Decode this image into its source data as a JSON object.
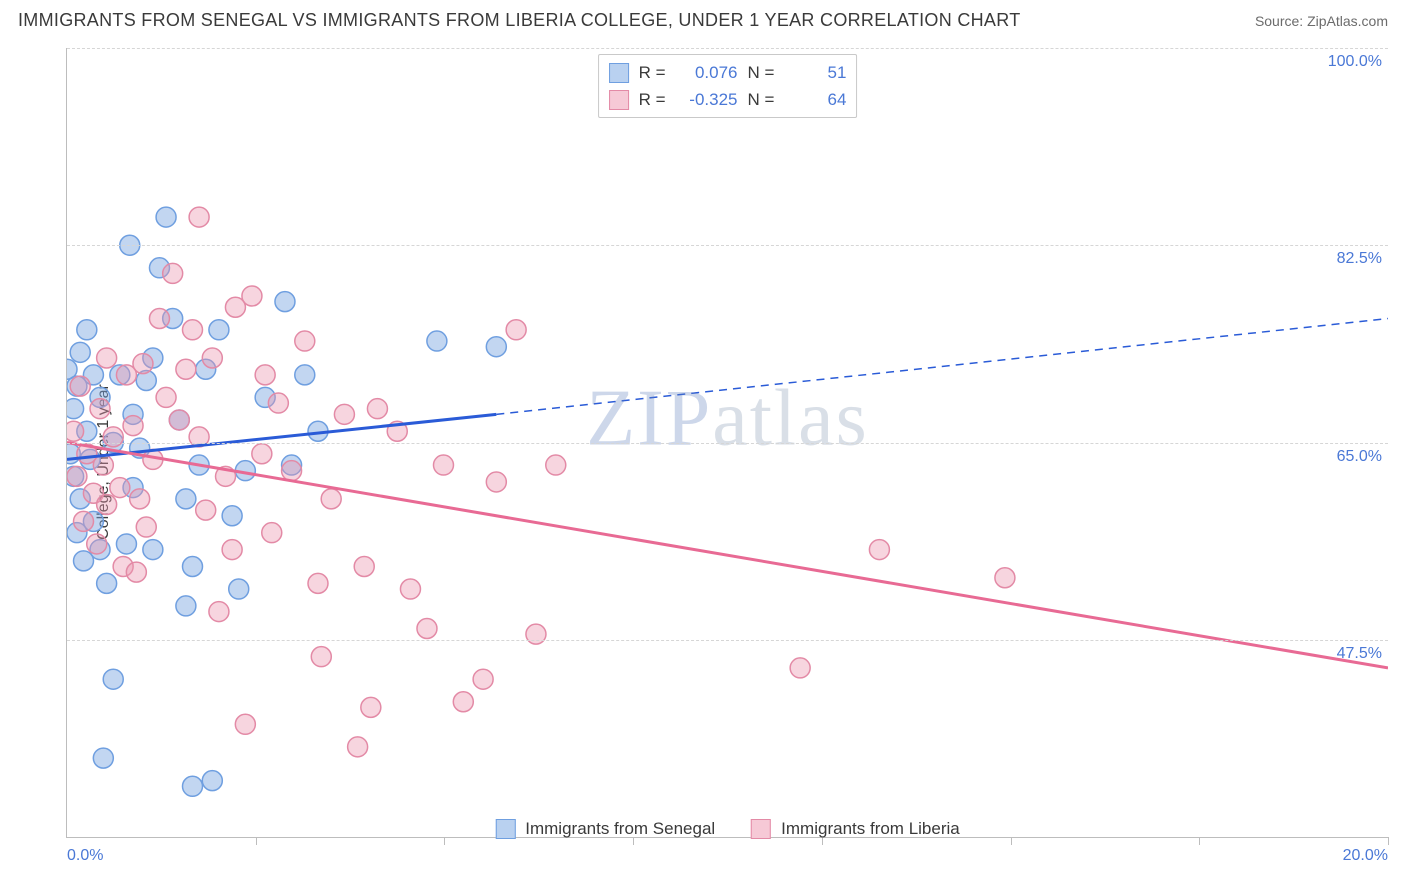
{
  "title": "IMMIGRANTS FROM SENEGAL VS IMMIGRANTS FROM LIBERIA COLLEGE, UNDER 1 YEAR CORRELATION CHART",
  "source": "Source: ZipAtlas.com",
  "yaxis_label": "College, Under 1 year",
  "watermark": "ZIPatlas",
  "chart": {
    "type": "scatter",
    "background_color": "#ffffff",
    "grid_color": "#d6d6d6",
    "axis_color": "#bdbdbd",
    "tick_label_color": "#4a78d6",
    "xlim": [
      0,
      20
    ],
    "ylim": [
      30,
      100
    ],
    "x_ticks": [
      0,
      2.86,
      5.71,
      8.57,
      11.43,
      14.29,
      17.14,
      20
    ],
    "x_labels": [
      {
        "x": 0,
        "text": "0.0%",
        "anchor": "start"
      },
      {
        "x": 20,
        "text": "20.0%",
        "anchor": "end"
      }
    ],
    "y_gridlines": [
      47.5,
      65.0,
      82.5,
      100.0
    ],
    "y_labels": [
      "47.5%",
      "65.0%",
      "82.5%",
      "100.0%"
    ],
    "series": [
      {
        "name": "Immigrants from Senegal",
        "color_fill": "rgba(120,165,225,0.45)",
        "color_stroke": "#6f9fe0",
        "swatch_fill": "#b9d1f0",
        "swatch_border": "#6f9fe0",
        "trend_color": "#2a5bd7",
        "trend_width": 3,
        "r": 0.076,
        "n": 51,
        "marker_radius": 10,
        "trend_solid": {
          "x1": 0,
          "y1": 63.5,
          "x2": 6.5,
          "y2": 67.5
        },
        "trend_dashed": {
          "x1": 6.5,
          "y1": 67.5,
          "x2": 20,
          "y2": 76.0
        },
        "points": [
          [
            0.0,
            71.5
          ],
          [
            0.05,
            64.0
          ],
          [
            0.1,
            68.0
          ],
          [
            0.1,
            62.0
          ],
          [
            0.15,
            57.0
          ],
          [
            0.15,
            70.0
          ],
          [
            0.2,
            73.0
          ],
          [
            0.2,
            60.0
          ],
          [
            0.25,
            54.5
          ],
          [
            0.3,
            66.0
          ],
          [
            0.35,
            63.5
          ],
          [
            0.4,
            71.0
          ],
          [
            0.4,
            58.0
          ],
          [
            0.5,
            55.5
          ],
          [
            0.5,
            69.0
          ],
          [
            0.6,
            52.5
          ],
          [
            0.7,
            44.0
          ],
          [
            0.7,
            65.0
          ],
          [
            0.8,
            71.0
          ],
          [
            0.9,
            56.0
          ],
          [
            0.95,
            82.5
          ],
          [
            1.0,
            67.5
          ],
          [
            1.0,
            61.0
          ],
          [
            1.1,
            64.5
          ],
          [
            1.2,
            70.5
          ],
          [
            1.3,
            55.5
          ],
          [
            1.3,
            72.5
          ],
          [
            1.4,
            80.5
          ],
          [
            1.5,
            85.0
          ],
          [
            1.6,
            76.0
          ],
          [
            1.7,
            67.0
          ],
          [
            1.8,
            50.5
          ],
          [
            1.8,
            60.0
          ],
          [
            1.9,
            54.0
          ],
          [
            2.0,
            63.0
          ],
          [
            2.1,
            71.5
          ],
          [
            2.2,
            35.0
          ],
          [
            2.3,
            75.0
          ],
          [
            2.5,
            58.5
          ],
          [
            2.6,
            52.0
          ],
          [
            2.7,
            62.5
          ],
          [
            3.0,
            69.0
          ],
          [
            3.3,
            77.5
          ],
          [
            3.4,
            63.0
          ],
          [
            3.6,
            71.0
          ],
          [
            3.8,
            66.0
          ],
          [
            0.3,
            75.0
          ],
          [
            5.6,
            74.0
          ],
          [
            6.5,
            73.5
          ],
          [
            1.9,
            34.5
          ],
          [
            0.55,
            37.0
          ]
        ]
      },
      {
        "name": "Immigrants from Liberia",
        "color_fill": "rgba(235,150,175,0.40)",
        "color_stroke": "#e38aa6",
        "swatch_fill": "#f6c9d6",
        "swatch_border": "#e38aa6",
        "trend_color": "#e86a94",
        "trend_width": 3,
        "r": -0.325,
        "n": 64,
        "marker_radius": 10,
        "trend_solid": {
          "x1": 0,
          "y1": 65.0,
          "x2": 20,
          "y2": 45.0
        },
        "trend_dashed": null,
        "points": [
          [
            0.1,
            66.0
          ],
          [
            0.15,
            62.0
          ],
          [
            0.2,
            70.0
          ],
          [
            0.25,
            58.0
          ],
          [
            0.3,
            64.0
          ],
          [
            0.4,
            60.5
          ],
          [
            0.45,
            56.0
          ],
          [
            0.5,
            68.0
          ],
          [
            0.55,
            63.0
          ],
          [
            0.6,
            59.5
          ],
          [
            0.7,
            65.5
          ],
          [
            0.8,
            61.0
          ],
          [
            0.85,
            54.0
          ],
          [
            0.9,
            71.0
          ],
          [
            1.0,
            66.5
          ],
          [
            1.1,
            60.0
          ],
          [
            1.15,
            72.0
          ],
          [
            1.2,
            57.5
          ],
          [
            1.3,
            63.5
          ],
          [
            1.4,
            76.0
          ],
          [
            1.5,
            69.0
          ],
          [
            1.6,
            80.0
          ],
          [
            1.7,
            67.0
          ],
          [
            1.8,
            71.5
          ],
          [
            1.9,
            75.0
          ],
          [
            2.0,
            85.0
          ],
          [
            2.0,
            65.5
          ],
          [
            2.1,
            59.0
          ],
          [
            2.2,
            72.5
          ],
          [
            2.3,
            50.0
          ],
          [
            2.4,
            62.0
          ],
          [
            2.5,
            55.5
          ],
          [
            2.7,
            40.0
          ],
          [
            2.8,
            78.0
          ],
          [
            2.95,
            64.0
          ],
          [
            3.0,
            71.0
          ],
          [
            3.1,
            57.0
          ],
          [
            3.2,
            68.5
          ],
          [
            3.4,
            62.5
          ],
          [
            3.6,
            74.0
          ],
          [
            3.8,
            52.5
          ],
          [
            4.0,
            60.0
          ],
          [
            4.2,
            67.5
          ],
          [
            4.4,
            38.0
          ],
          [
            4.5,
            54.0
          ],
          [
            4.7,
            68.0
          ],
          [
            5.0,
            66.0
          ],
          [
            5.2,
            52.0
          ],
          [
            5.45,
            48.5
          ],
          [
            5.7,
            63.0
          ],
          [
            6.0,
            42.0
          ],
          [
            6.3,
            44.0
          ],
          [
            6.5,
            61.5
          ],
          [
            6.8,
            75.0
          ],
          [
            7.1,
            48.0
          ],
          [
            7.4,
            63.0
          ],
          [
            11.1,
            45.0
          ],
          [
            12.3,
            55.5
          ],
          [
            14.2,
            53.0
          ],
          [
            0.6,
            72.5
          ],
          [
            1.05,
            53.5
          ],
          [
            2.55,
            77.0
          ],
          [
            3.85,
            46.0
          ],
          [
            4.6,
            41.5
          ]
        ]
      }
    ]
  }
}
